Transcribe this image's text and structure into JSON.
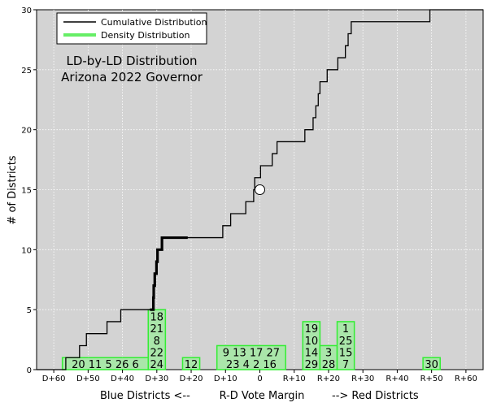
{
  "chart_data": {
    "type": "step",
    "title_lines": [
      "LD-by-LD Distribution",
      "Arizona 2022 Governor"
    ],
    "xlabel": "R-D Vote Margin",
    "xlabel_left": "Blue Districts <--",
    "xlabel_right": "--> Red Districts",
    "ylabel": "# of Districts",
    "xlim": [
      -65,
      65
    ],
    "ylim": [
      0,
      30
    ],
    "x_ticks": [
      {
        "value": -60,
        "label": "D+60"
      },
      {
        "value": -50,
        "label": "D+50"
      },
      {
        "value": -40,
        "label": "D+40"
      },
      {
        "value": -30,
        "label": "D+30"
      },
      {
        "value": -20,
        "label": "D+20"
      },
      {
        "value": -10,
        "label": "D+10"
      },
      {
        "value": 0,
        "label": "0"
      },
      {
        "value": 10,
        "label": "R+10"
      },
      {
        "value": 20,
        "label": "R+20"
      },
      {
        "value": 30,
        "label": "R+30"
      },
      {
        "value": 40,
        "label": "R+40"
      },
      {
        "value": 50,
        "label": "R+50"
      },
      {
        "value": 60,
        "label": "R+60"
      }
    ],
    "y_ticks": [
      0,
      5,
      10,
      15,
      20,
      25,
      30
    ],
    "grid": true,
    "legend": {
      "position": "top-left",
      "entries": [
        {
          "label": "Cumulative Distribution",
          "color": "#000000"
        },
        {
          "label": "Density Distribution",
          "color": "#66ee66"
        }
      ]
    },
    "colors": {
      "plot_bg": "#d3d3d3",
      "density_fill": "#aae6aa",
      "density_edge": "#33ee33",
      "line": "#000000"
    },
    "cumulative_x": [
      -56.5,
      -52.5,
      -50.5,
      -44.5,
      -40.5,
      -37.5,
      -32.5,
      -31.0,
      -31.0,
      -30.9,
      -30.6,
      -30.1,
      -29.9,
      -29.8,
      -28.9,
      -28.5,
      -22.5,
      -21.5,
      -10.8,
      -8.5,
      -4.1,
      -1.8,
      -1.5,
      -0.5,
      0.2,
      3.6,
      5.0,
      13.1,
      15.5,
      16.3,
      17.0,
      17.5,
      19.6,
      22.7,
      24.9,
      25.7,
      26.6,
      27.2,
      49.5,
      65.0
    ],
    "cumulative_y": [
      1,
      2,
      3,
      4,
      5,
      5,
      5,
      5,
      6,
      7,
      8,
      9,
      9,
      10,
      10,
      11,
      11,
      11,
      12,
      13,
      14,
      15,
      16,
      16,
      17,
      18,
      19,
      20,
      21,
      22,
      23,
      24,
      25,
      26,
      27,
      28,
      29,
      29,
      30,
      30
    ],
    "cumulative_bold_x": [
      -32.0,
      -21.0
    ],
    "marker": {
      "x": 0,
      "y": 15
    },
    "density_bins": [
      {
        "start": -57.5,
        "end": -32.5,
        "count": 1,
        "labels": [
          "20 11 5 26 6"
        ]
      },
      {
        "start": -32.5,
        "end": -27.5,
        "count": 5,
        "labels": [
          "18",
          "21",
          "8",
          "22",
          "24"
        ]
      },
      {
        "start": -22.5,
        "end": -17.5,
        "count": 1,
        "labels": [
          "12"
        ]
      },
      {
        "start": -12.5,
        "end": 7.5,
        "count": 2,
        "labels": [
          "9 13 17 27",
          "23 4 2 16"
        ]
      },
      {
        "start": 12.5,
        "end": 17.5,
        "count": 4,
        "labels": [
          "19",
          "10",
          "14",
          "29"
        ]
      },
      {
        "start": 17.5,
        "end": 22.5,
        "count": 2,
        "labels": [
          "3",
          "28"
        ]
      },
      {
        "start": 22.5,
        "end": 27.5,
        "count": 4,
        "labels": [
          "1",
          "25",
          "15",
          "7"
        ]
      },
      {
        "start": 47.5,
        "end": 52.5,
        "count": 1,
        "labels": [
          "30"
        ]
      }
    ]
  }
}
